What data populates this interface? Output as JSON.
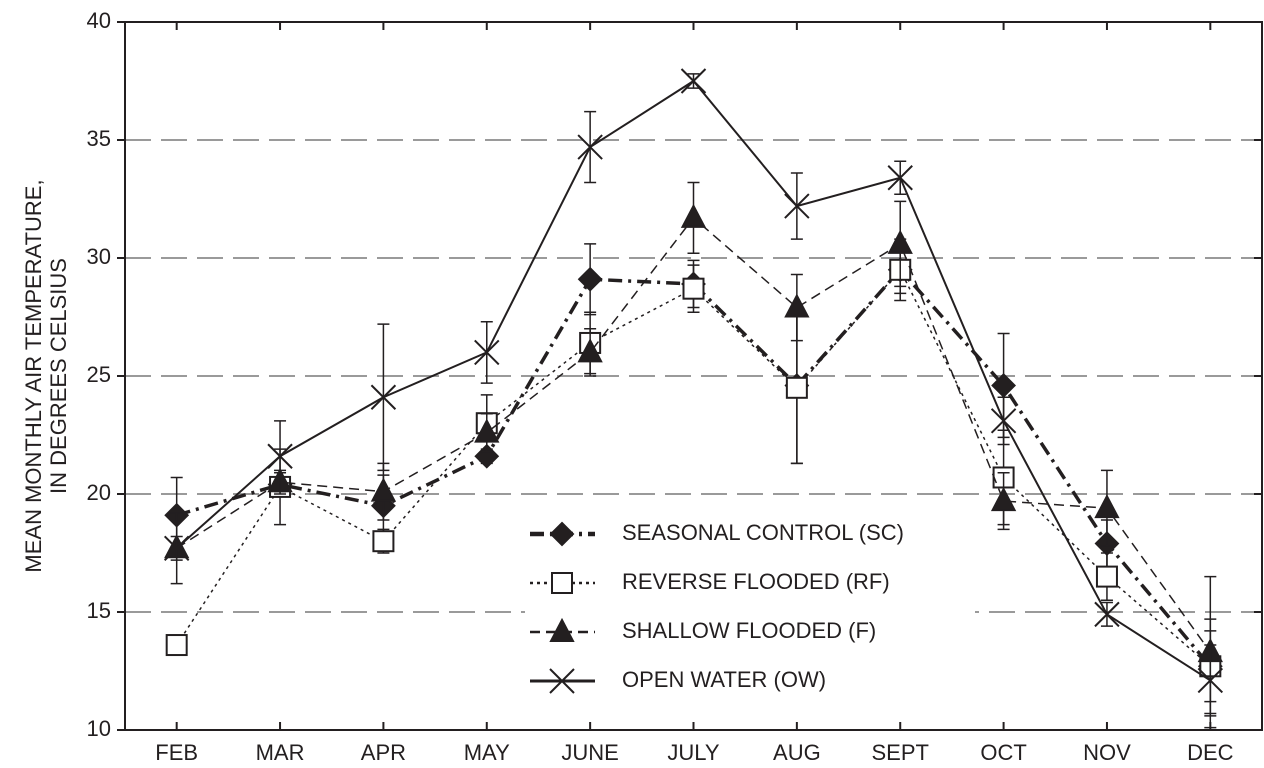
{
  "chart_data": {
    "type": "line",
    "ylabel": [
      "MEAN MONTHLY AIR TEMPERATURE,",
      "IN DEGREES CELSIUS"
    ],
    "categories": [
      "FEB",
      "MAR",
      "APR",
      "MAY",
      "JUNE",
      "JULY",
      "AUG",
      "SEPT",
      "OCT",
      "NOV",
      "DEC"
    ],
    "ylim": [
      10,
      40
    ],
    "yticks": [
      10,
      15,
      20,
      25,
      30,
      35,
      40
    ],
    "grid": true,
    "legend": "bottom-center",
    "series": [
      {
        "name": "SEASONAL CONTROL (SC)",
        "color": "#231f20",
        "marker": "diamond",
        "dash": "14 6 3 6",
        "width": 3.5,
        "values": [
          19.1,
          20.4,
          19.5,
          21.6,
          29.1,
          28.9,
          24.6,
          29.5,
          24.6,
          17.9,
          12.7
        ],
        "errors": [
          1.6,
          0.5,
          1.3,
          0.3,
          1.5,
          1.0,
          3.3,
          1.0,
          2.2,
          1.0,
          1.5
        ]
      },
      {
        "name": "REVERSE FLOODED (RF)",
        "color": "#231f20",
        "marker": "square",
        "dash": "3 4",
        "width": 1.5,
        "values": [
          13.6,
          20.3,
          18.0,
          23.0,
          26.4,
          28.7,
          24.5,
          29.5,
          20.7,
          16.5,
          12.7
        ],
        "errors": [
          0,
          1.6,
          0.5,
          1.2,
          1.3,
          1.0,
          3.2,
          1.3,
          2.0,
          1.0,
          2.0
        ]
      },
      {
        "name": "SHALLOW FLOODED (F)",
        "color": "#231f20",
        "marker": "triangle",
        "dash": "10 6",
        "width": 1.5,
        "values": [
          17.7,
          20.5,
          20.1,
          22.6,
          26.0,
          31.7,
          27.9,
          30.6,
          19.7,
          19.4,
          13.3
        ],
        "errors": [
          1.5,
          0.5,
          1.2,
          0.8,
          1.0,
          1.5,
          1.4,
          1.8,
          1.2,
          1.6,
          3.2
        ]
      },
      {
        "name": "OPEN WATER (OW)",
        "color": "#231f20",
        "marker": "x",
        "dash": "",
        "width": 2,
        "values": [
          17.7,
          21.6,
          24.1,
          26.0,
          34.7,
          37.5,
          32.2,
          33.4,
          23.1,
          14.9,
          12.1
        ],
        "errors": [
          0.5,
          1.5,
          3.1,
          1.3,
          1.5,
          0.3,
          1.4,
          0.7,
          1.0,
          0.5,
          1.5
        ]
      }
    ]
  }
}
